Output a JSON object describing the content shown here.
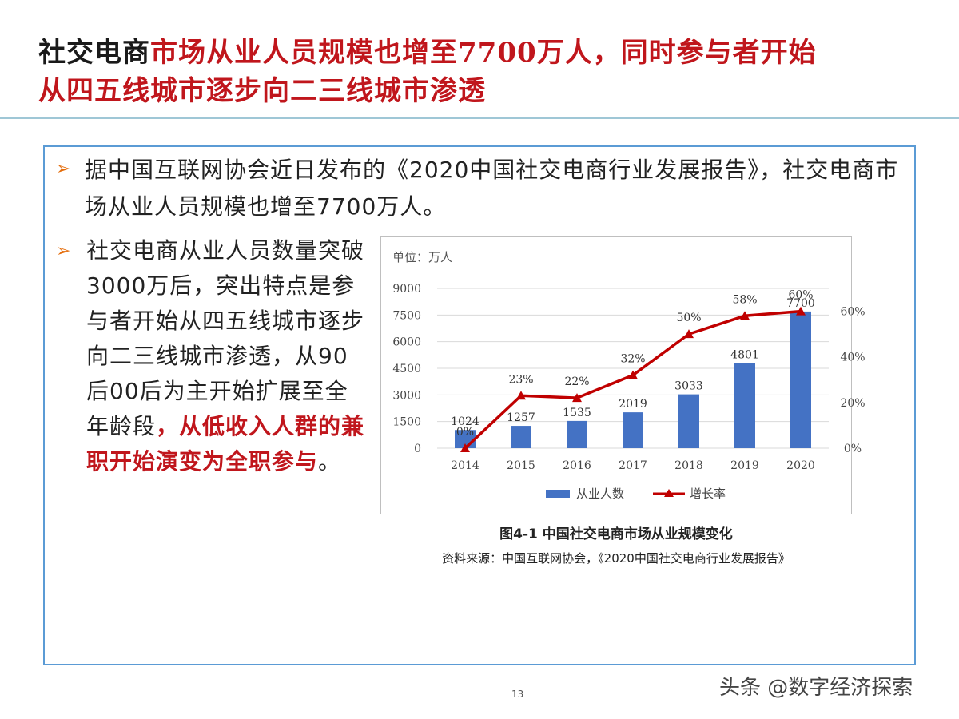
{
  "title": {
    "part1": "社交电商",
    "part2": "市场从业人员",
    "part3": "规模也增至7700万人，同时参与者开始",
    "part4": "从四五线城市逐步向二三线城市渗透"
  },
  "bullets": {
    "p1": "据中国互联网协会近日发布的《2020中国社交电商行业发展报告》，社交电商市场从业人员规模也增至7700万人。",
    "p2_normal": "社交电商从业人员数量突破3000万后，突出特点是参与者开始从四五线城市逐步向二三线城市渗透，从90后00后为主开始扩展至全年龄段",
    "p2_red": "，从低收入人群的兼职开始演变为全职参与",
    "p2_end": "。"
  },
  "chart_data": {
    "type": "bar",
    "unit_label": "单位：万人",
    "categories": [
      "2014",
      "2015",
      "2016",
      "2017",
      "2018",
      "2019",
      "2020"
    ],
    "series": [
      {
        "name": "从业人数",
        "type": "bar",
        "values": [
          1024,
          1257,
          1535,
          2019,
          3033,
          4801,
          7700
        ],
        "color": "#4472c4"
      },
      {
        "name": "增长率",
        "type": "line",
        "values": [
          0,
          23,
          22,
          32,
          50,
          58,
          60
        ],
        "color": "#c00000",
        "labels": [
          "0%",
          "23%",
          "22%",
          "32%",
          "50%",
          "58%",
          "60%"
        ]
      }
    ],
    "y_left": {
      "min": 0,
      "max": 9000,
      "ticks": [
        "0",
        "1500",
        "3000",
        "4500",
        "6000",
        "7500",
        "9000"
      ]
    },
    "y_right": {
      "min": 0,
      "max": 70,
      "ticks": [
        "0%",
        "20%",
        "40%",
        "60%"
      ]
    },
    "legend_placement": "bottom",
    "caption": "图4-1 中国社交电商市场从业规模变化",
    "source": "资料来源：中国互联网协会，《2020中国社交电商行业发展报告》"
  },
  "page_number": "13",
  "watermark": "头条 @数字经济探索"
}
